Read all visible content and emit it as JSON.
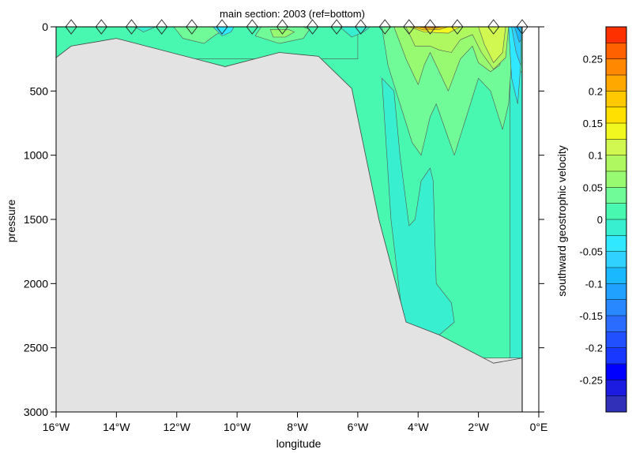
{
  "chart_data": {
    "type": "contour",
    "title": "main section: 2003 (ref=bottom)",
    "xlabel": "longitude",
    "ylabel": "pressure",
    "colorbar_label": "southward geostrophic velocity",
    "xlim": [
      -16,
      -0.5
    ],
    "ylim": [
      3000,
      0
    ],
    "x_ticks": [
      {
        "value": -16,
        "label": "16°W"
      },
      {
        "value": -14,
        "label": "14°W"
      },
      {
        "value": -12,
        "label": "12°W"
      },
      {
        "value": -10,
        "label": "10°W"
      },
      {
        "value": -8,
        "label": "8°W"
      },
      {
        "value": -6,
        "label": "6°W"
      },
      {
        "value": -4,
        "label": "4°W"
      },
      {
        "value": -2,
        "label": "2°W"
      },
      {
        "value": 0,
        "label": "0°E"
      }
    ],
    "y_ticks": [
      {
        "value": 0,
        "label": "0"
      },
      {
        "value": 500,
        "label": "500"
      },
      {
        "value": 1000,
        "label": "1000"
      },
      {
        "value": 1500,
        "label": "1500"
      },
      {
        "value": 2000,
        "label": "2000"
      },
      {
        "value": 2500,
        "label": "2500"
      },
      {
        "value": 3000,
        "label": "3000"
      }
    ],
    "station_longitudes": [
      -15.5,
      -14.5,
      -13.5,
      -12.5,
      -11.5,
      -10.5,
      -9.5,
      -8.5,
      -7.5,
      -6.7,
      -5.9,
      -5.1,
      -4.3,
      -3.6,
      -2.7,
      -1.5,
      -0.55
    ],
    "bottom_profile": [
      {
        "lon": -16.0,
        "pressure": 240
      },
      {
        "lon": -15.5,
        "pressure": 150
      },
      {
        "lon": -14.0,
        "pressure": 90
      },
      {
        "lon": -10.4,
        "pressure": 310
      },
      {
        "lon": -8.6,
        "pressure": 200
      },
      {
        "lon": -7.3,
        "pressure": 230
      },
      {
        "lon": -6.2,
        "pressure": 480
      },
      {
        "lon": -5.3,
        "pressure": 1500
      },
      {
        "lon": -4.4,
        "pressure": 2300
      },
      {
        "lon": -3.3,
        "pressure": 2400
      },
      {
        "lon": -1.5,
        "pressure": 2620
      },
      {
        "lon": -0.55,
        "pressure": 2580
      }
    ],
    "colorbar": {
      "levels": [
        -0.3,
        -0.275,
        -0.25,
        -0.225,
        -0.2,
        -0.175,
        -0.15,
        -0.125,
        -0.1,
        -0.075,
        -0.05,
        -0.025,
        0,
        0.025,
        0.05,
        0.075,
        0.1,
        0.125,
        0.15,
        0.175,
        0.2,
        0.225,
        0.25,
        0.275,
        0.3
      ],
      "colors": [
        "#3030b8",
        "#1c1ce0",
        "#0000ff",
        "#1838ff",
        "#2050ff",
        "#2a6cff",
        "#2888ff",
        "#20a0ff",
        "#1ab8ff",
        "#30d0ff",
        "#30e8ff",
        "#38f0d0",
        "#48f8b0",
        "#70fa98",
        "#98fa70",
        "#b0f860",
        "#d0f850",
        "#f0f820",
        "#ffe000",
        "#ffc800",
        "#ffa800",
        "#ff8800",
        "#ff6000",
        "#ff3000"
      ],
      "tick_labels": [
        {
          "value": 0.25,
          "label": "0.25"
        },
        {
          "value": 0.2,
          "label": "0.2"
        },
        {
          "value": 0.15,
          "label": "0.15"
        },
        {
          "value": 0.1,
          "label": "0.1"
        },
        {
          "value": 0.05,
          "label": "0.05"
        },
        {
          "value": 0,
          "label": "0"
        },
        {
          "value": -0.05,
          "label": "-0.05"
        },
        {
          "value": -0.1,
          "label": "-0.1"
        },
        {
          "value": -0.15,
          "label": "-0.15"
        },
        {
          "value": -0.2,
          "label": "-0.2"
        },
        {
          "value": -0.25,
          "label": "-0.25"
        }
      ]
    },
    "regions": [
      {
        "name": "background-zero",
        "value": 0.01,
        "outline": [
          [
            -16,
            0
          ],
          [
            -0.5,
            0
          ],
          [
            -0.5,
            2580
          ],
          [
            -16,
            2580
          ]
        ]
      },
      {
        "name": "shelf-zero",
        "value": 0.01,
        "outline": [
          [
            -16,
            0
          ],
          [
            -6,
            0
          ],
          [
            -6,
            250
          ],
          [
            -16,
            250
          ]
        ]
      },
      {
        "name": "shelf-negative-1",
        "value": -0.01,
        "outline": [
          [
            -13.4,
            0
          ],
          [
            -13.1,
            40
          ],
          [
            -12.7,
            0
          ]
        ]
      },
      {
        "name": "shelf-positive-1",
        "value": 0.03,
        "outline": [
          [
            -12.1,
            0
          ],
          [
            -11.8,
            90
          ],
          [
            -11.1,
            130
          ],
          [
            -10.7,
            60
          ],
          [
            -10.2,
            0
          ]
        ]
      },
      {
        "name": "shelf-negative-2",
        "value": -0.04,
        "outline": [
          [
            -10.8,
            0
          ],
          [
            -10.5,
            70
          ],
          [
            -10.2,
            40
          ],
          [
            -10.1,
            0
          ]
        ]
      },
      {
        "name": "shelf-positive-2",
        "value": 0.035,
        "outline": [
          [
            -9.2,
            0
          ],
          [
            -9.4,
            70
          ],
          [
            -8.6,
            130
          ],
          [
            -7.8,
            90
          ],
          [
            -7.6,
            20
          ],
          [
            -7.8,
            0
          ]
        ]
      },
      {
        "name": "shelf-positive-3",
        "value": 0.06,
        "outline": [
          [
            -8.9,
            20
          ],
          [
            -8.8,
            80
          ],
          [
            -8.4,
            80
          ],
          [
            -8.1,
            40
          ],
          [
            -8.3,
            20
          ]
        ]
      },
      {
        "name": "shelf-negative-3",
        "value": -0.02,
        "outline": [
          [
            -6.6,
            0
          ],
          [
            -6.2,
            80
          ],
          [
            -5.8,
            40
          ],
          [
            -5.6,
            0
          ]
        ]
      },
      {
        "name": "deep-negative",
        "value": -0.01,
        "outline": [
          [
            -5.2,
            400
          ],
          [
            -4.9,
            1500
          ],
          [
            -4.5,
            2300
          ],
          [
            -3.3,
            2400
          ],
          [
            -2.8,
            2300
          ],
          [
            -2.9,
            2150
          ],
          [
            -3.4,
            2000
          ],
          [
            -3.5,
            1200
          ],
          [
            -3.6,
            1100
          ],
          [
            -3.9,
            1200
          ],
          [
            -4.1,
            1500
          ],
          [
            -4.3,
            1550
          ],
          [
            -4.6,
            1000
          ],
          [
            -4.8,
            500
          ]
        ]
      },
      {
        "name": "east-negative",
        "value": -0.01,
        "outline": [
          [
            -0.95,
            350
          ],
          [
            -0.95,
            2580
          ],
          [
            -0.55,
            2580
          ],
          [
            -0.55,
            350
          ]
        ]
      },
      {
        "name": "upper-positive",
        "value": 0.04,
        "outline": [
          [
            -5.2,
            0
          ],
          [
            -5.0,
            300
          ],
          [
            -4.6,
            600
          ],
          [
            -4.2,
            900
          ],
          [
            -3.9,
            1000
          ],
          [
            -3.6,
            700
          ],
          [
            -3.4,
            600
          ],
          [
            -3.1,
            800
          ],
          [
            -2.8,
            1000
          ],
          [
            -2.4,
            700
          ],
          [
            -2.0,
            400
          ],
          [
            -1.6,
            500
          ],
          [
            -1.2,
            800
          ],
          [
            -1.0,
            600
          ],
          [
            -0.9,
            250
          ],
          [
            -0.8,
            0
          ]
        ]
      },
      {
        "name": "upper-positive-2",
        "value": 0.065,
        "outline": [
          [
            -4.8,
            0
          ],
          [
            -4.4,
            250
          ],
          [
            -4.0,
            450
          ],
          [
            -3.8,
            300
          ],
          [
            -3.6,
            200
          ],
          [
            -3.3,
            350
          ],
          [
            -3.0,
            500
          ],
          [
            -2.6,
            250
          ],
          [
            -2.2,
            150
          ],
          [
            -2.0,
            280
          ],
          [
            -1.6,
            350
          ],
          [
            -1.3,
            300
          ],
          [
            -1.1,
            150
          ],
          [
            -1.0,
            0
          ]
        ]
      },
      {
        "name": "upper-positive-3",
        "value": 0.085,
        "outline": [
          [
            -4.4,
            0
          ],
          [
            -4.1,
            150
          ],
          [
            -3.6,
            150
          ],
          [
            -3.3,
            180
          ],
          [
            -2.9,
            200
          ],
          [
            -2.6,
            100
          ],
          [
            -2.2,
            60
          ],
          [
            -1.9,
            200
          ],
          [
            -1.5,
            330
          ],
          [
            -1.1,
            240
          ],
          [
            -1.0,
            0
          ]
        ]
      },
      {
        "name": "upper-positive-4",
        "value": 0.115,
        "outline": [
          [
            -2.0,
            0
          ],
          [
            -1.8,
            140
          ],
          [
            -1.5,
            280
          ],
          [
            -1.2,
            200
          ],
          [
            -1.1,
            0
          ]
        ]
      },
      {
        "name": "upper-positive-5",
        "value": 0.14,
        "outline": [
          [
            -4.3,
            0
          ],
          [
            -3.8,
            40
          ],
          [
            -3.0,
            50
          ],
          [
            -2.6,
            0
          ]
        ]
      },
      {
        "name": "core-1",
        "value": 0.19,
        "outline": [
          [
            -4.2,
            0
          ],
          [
            -3.8,
            25
          ],
          [
            -3.3,
            20
          ],
          [
            -3.0,
            0
          ]
        ]
      },
      {
        "name": "core-2",
        "value": 0.24,
        "outline": [
          [
            -4.0,
            0
          ],
          [
            -3.7,
            12
          ],
          [
            -3.4,
            8
          ],
          [
            -3.2,
            0
          ]
        ]
      },
      {
        "name": "east-neg-1",
        "value": -0.03,
        "outline": [
          [
            -1.0,
            0
          ],
          [
            -0.9,
            400
          ],
          [
            -0.7,
            600
          ],
          [
            -0.6,
            300
          ],
          [
            -0.6,
            0
          ]
        ]
      },
      {
        "name": "east-neg-2",
        "value": -0.06,
        "outline": [
          [
            -0.9,
            0
          ],
          [
            -0.75,
            200
          ],
          [
            -0.6,
            300
          ],
          [
            -0.58,
            0
          ]
        ]
      },
      {
        "name": "east-neg-3",
        "value": -0.1,
        "outline": [
          [
            -0.8,
            0
          ],
          [
            -0.65,
            120
          ],
          [
            -0.58,
            100
          ],
          [
            -0.58,
            0
          ]
        ]
      }
    ]
  }
}
